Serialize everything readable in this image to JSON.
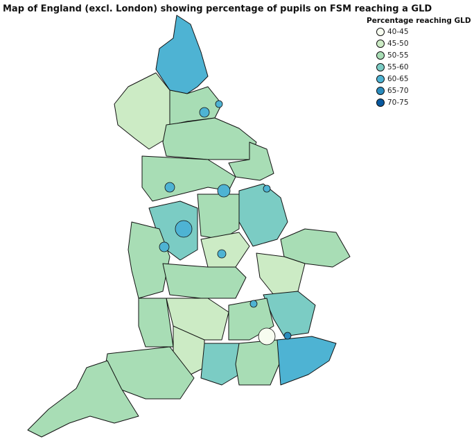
{
  "title": "Map of England (excl. London) showing percentage of pupils on FSM reaching a GLD",
  "legend": {
    "title": "Percentage reaching GLD",
    "items": [
      {
        "label": "40-45",
        "color": "#f7fcf0"
      },
      {
        "label": "45-50",
        "color": "#ccebc5"
      },
      {
        "label": "50-55",
        "color": "#a8ddb5"
      },
      {
        "label": "55-60",
        "color": "#7bccc4"
      },
      {
        "label": "60-65",
        "color": "#4eb3d3"
      },
      {
        "label": "65-70",
        "color": "#2b8cbe"
      },
      {
        "label": "70-75",
        "color": "#08589e"
      }
    ]
  }
}
